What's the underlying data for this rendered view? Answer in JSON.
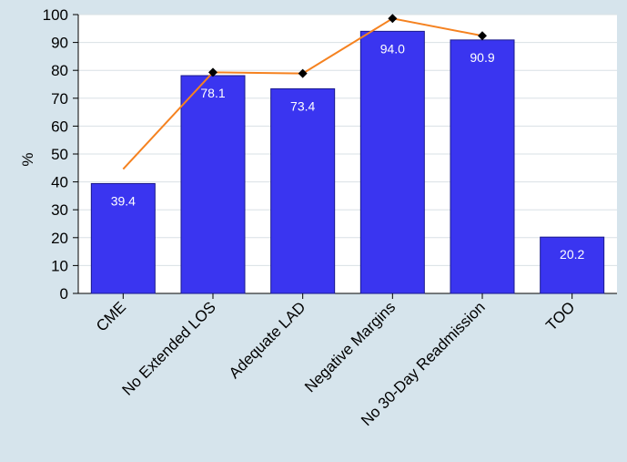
{
  "chart_data": {
    "type": "bar",
    "ylabel": "%",
    "ylim": [
      0,
      100
    ],
    "yticks": [
      0,
      10,
      20,
      30,
      40,
      50,
      60,
      70,
      80,
      90,
      100
    ],
    "grid": true,
    "categories": [
      "CME",
      "No Extended LOS",
      "Adequate LAD",
      "Negative Margins",
      "No 30-Day Readmission",
      "TOO"
    ],
    "series": [
      {
        "type": "bar",
        "values": [
          39.4,
          78.1,
          73.4,
          94.0,
          90.9,
          20.2
        ],
        "labels": [
          "39.4",
          "78.1",
          "73.4",
          "94.0",
          "90.9",
          "20.2"
        ],
        "color": "#3a35f0"
      },
      {
        "type": "line",
        "values": [
          44.6,
          79.3,
          78.9,
          98.6,
          92.4,
          null
        ],
        "markers": [
          false,
          true,
          true,
          true,
          true,
          false
        ],
        "color": "#f58220",
        "marker_color": "#000000"
      }
    ],
    "colors": {
      "background": "#d6e4ec",
      "plot_background": "#ffffff",
      "grid": "#d9e0e5",
      "axis": "#000000",
      "bar_label": "#ffffff"
    }
  }
}
